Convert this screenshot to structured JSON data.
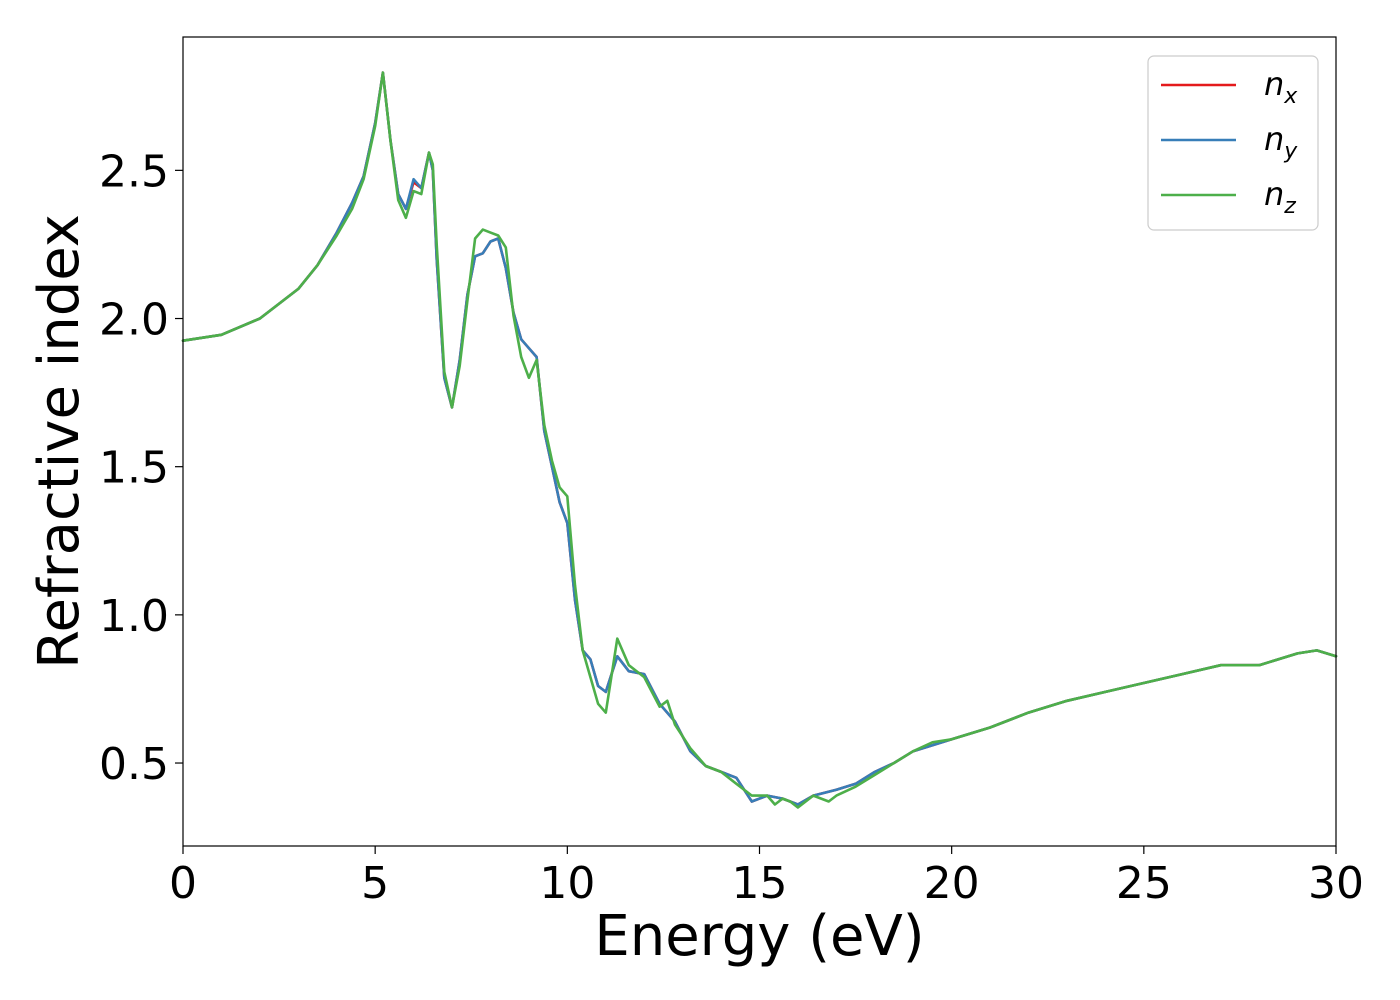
{
  "chart_data": {
    "type": "line",
    "xlabel": "Energy (eV)",
    "ylabel": "Refractive index",
    "xlim": [
      0,
      30
    ],
    "ylim": [
      0.22,
      2.95
    ],
    "xticks": [
      0,
      5,
      10,
      15,
      20,
      25,
      30
    ],
    "xtick_labels": [
      "0",
      "5",
      "10",
      "15",
      "20",
      "25",
      "30"
    ],
    "yticks": [
      0.5,
      1.0,
      1.5,
      2.0,
      2.5
    ],
    "ytick_labels": [
      "0.5",
      "1.0",
      "1.5",
      "2.0",
      "2.5"
    ],
    "grid": false,
    "legend_position": "top-right",
    "series": [
      {
        "name": "n_x",
        "legend_base": "n",
        "legend_sub": "x",
        "color": "#e41a1c",
        "x": [
          0,
          1,
          2,
          3,
          3.5,
          4,
          4.4,
          4.7,
          5.0,
          5.2,
          5.4,
          5.6,
          5.8,
          6.0,
          6.2,
          6.4,
          6.5,
          6.6,
          6.8,
          7.0,
          7.2,
          7.4,
          7.6,
          7.8,
          8.0,
          8.2,
          8.4,
          8.6,
          8.8,
          9.0,
          9.2,
          9.4,
          9.6,
          9.8,
          10.0,
          10.2,
          10.4,
          10.6,
          10.8,
          11.0,
          11.3,
          11.6,
          12.0,
          12.4,
          12.8,
          13.2,
          13.6,
          14.0,
          14.4,
          14.8,
          15.2,
          15.6,
          16.0,
          16.4,
          17.0,
          17.5,
          18.0,
          18.5,
          19.0,
          19.5,
          20.0,
          21.0,
          22.0,
          23.0,
          24.0,
          25.0,
          26.0,
          27.0,
          28.0,
          29.0,
          29.5,
          30.0
        ],
        "values": [
          1.925,
          1.945,
          2.0,
          2.1,
          2.18,
          2.29,
          2.39,
          2.48,
          2.66,
          2.83,
          2.6,
          2.42,
          2.37,
          2.46,
          2.44,
          2.56,
          2.5,
          2.2,
          1.8,
          1.7,
          1.86,
          2.08,
          2.21,
          2.22,
          2.26,
          2.27,
          2.17,
          2.02,
          1.93,
          1.9,
          1.87,
          1.62,
          1.5,
          1.38,
          1.31,
          1.05,
          0.88,
          0.85,
          0.76,
          0.74,
          0.86,
          0.81,
          0.8,
          0.7,
          0.64,
          0.54,
          0.49,
          0.47,
          0.45,
          0.37,
          0.39,
          0.38,
          0.36,
          0.39,
          0.41,
          0.43,
          0.47,
          0.5,
          0.54,
          0.56,
          0.58,
          0.62,
          0.67,
          0.71,
          0.74,
          0.77,
          0.8,
          0.83,
          0.83,
          0.87,
          0.88,
          0.86
        ]
      },
      {
        "name": "n_y",
        "legend_base": "n",
        "legend_sub": "y",
        "color": "#377eb8",
        "x": [
          0,
          1,
          2,
          3,
          3.5,
          4,
          4.4,
          4.7,
          5.0,
          5.2,
          5.4,
          5.6,
          5.8,
          6.0,
          6.2,
          6.4,
          6.5,
          6.6,
          6.8,
          7.0,
          7.2,
          7.4,
          7.6,
          7.8,
          8.0,
          8.2,
          8.4,
          8.6,
          8.8,
          9.0,
          9.2,
          9.4,
          9.6,
          9.8,
          10.0,
          10.2,
          10.4,
          10.6,
          10.8,
          11.0,
          11.3,
          11.6,
          12.0,
          12.4,
          12.8,
          13.2,
          13.6,
          14.0,
          14.4,
          14.8,
          15.2,
          15.6,
          16.0,
          16.4,
          17.0,
          17.5,
          18.0,
          18.5,
          19.0,
          19.5,
          20.0,
          21.0,
          22.0,
          23.0,
          24.0,
          25.0,
          26.0,
          27.0,
          28.0,
          29.0,
          29.5,
          30.0
        ],
        "values": [
          1.925,
          1.945,
          2.0,
          2.1,
          2.18,
          2.29,
          2.39,
          2.48,
          2.66,
          2.83,
          2.6,
          2.42,
          2.37,
          2.47,
          2.44,
          2.56,
          2.5,
          2.2,
          1.8,
          1.7,
          1.86,
          2.08,
          2.21,
          2.22,
          2.26,
          2.27,
          2.17,
          2.02,
          1.93,
          1.9,
          1.87,
          1.62,
          1.5,
          1.38,
          1.31,
          1.05,
          0.88,
          0.85,
          0.76,
          0.74,
          0.86,
          0.81,
          0.8,
          0.7,
          0.64,
          0.54,
          0.49,
          0.47,
          0.45,
          0.37,
          0.39,
          0.38,
          0.36,
          0.39,
          0.41,
          0.43,
          0.47,
          0.5,
          0.54,
          0.56,
          0.58,
          0.62,
          0.67,
          0.71,
          0.74,
          0.77,
          0.8,
          0.83,
          0.83,
          0.87,
          0.88,
          0.86
        ]
      },
      {
        "name": "n_z",
        "legend_base": "n",
        "legend_sub": "z",
        "color": "#4daf4a",
        "x": [
          0,
          1,
          2,
          3,
          3.5,
          4,
          4.4,
          4.7,
          5.0,
          5.2,
          5.4,
          5.6,
          5.8,
          6.0,
          6.2,
          6.4,
          6.5,
          6.6,
          6.8,
          7.0,
          7.2,
          7.4,
          7.6,
          7.8,
          8.0,
          8.2,
          8.4,
          8.6,
          8.8,
          9.0,
          9.2,
          9.4,
          9.6,
          9.8,
          10.0,
          10.2,
          10.4,
          10.6,
          10.8,
          11.0,
          11.3,
          11.6,
          12.0,
          12.4,
          12.6,
          12.8,
          13.2,
          13.6,
          14.0,
          14.4,
          14.8,
          15.2,
          15.4,
          15.6,
          15.8,
          16.0,
          16.4,
          16.8,
          17.0,
          17.5,
          18.0,
          18.5,
          19.0,
          19.5,
          20.0,
          21.0,
          22.0,
          23.0,
          24.0,
          25.0,
          26.0,
          27.0,
          28.0,
          29.0,
          29.5,
          30.0
        ],
        "values": [
          1.925,
          1.945,
          2.0,
          2.1,
          2.18,
          2.28,
          2.37,
          2.47,
          2.65,
          2.83,
          2.6,
          2.4,
          2.34,
          2.43,
          2.42,
          2.56,
          2.52,
          2.25,
          1.82,
          1.7,
          1.84,
          2.06,
          2.27,
          2.3,
          2.29,
          2.28,
          2.24,
          2.01,
          1.87,
          1.8,
          1.86,
          1.64,
          1.52,
          1.43,
          1.4,
          1.1,
          0.88,
          0.79,
          0.7,
          0.67,
          0.92,
          0.83,
          0.79,
          0.69,
          0.71,
          0.63,
          0.55,
          0.49,
          0.47,
          0.43,
          0.39,
          0.39,
          0.36,
          0.38,
          0.37,
          0.35,
          0.39,
          0.37,
          0.39,
          0.42,
          0.46,
          0.5,
          0.54,
          0.57,
          0.58,
          0.62,
          0.67,
          0.71,
          0.74,
          0.77,
          0.8,
          0.83,
          0.83,
          0.87,
          0.88,
          0.86
        ]
      }
    ]
  }
}
